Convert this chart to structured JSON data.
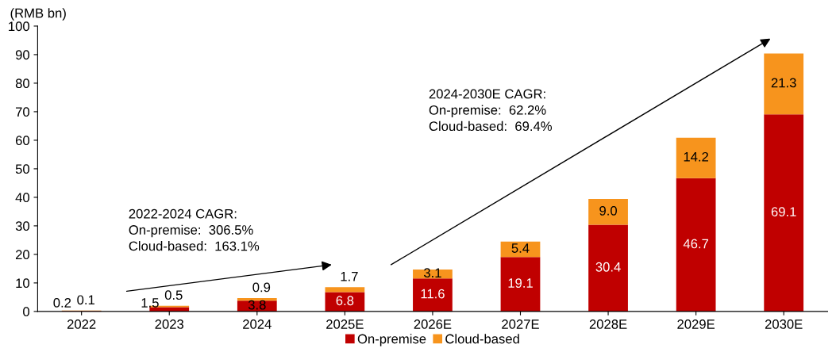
{
  "chart_data": {
    "type": "bar",
    "stacked": true,
    "ylabel": "(RMB bn)",
    "categories": [
      "2022",
      "2023",
      "2024",
      "2025E",
      "2026E",
      "2027E",
      "2028E",
      "2029E",
      "2030E"
    ],
    "series": [
      {
        "name": "On-premise",
        "color": "#c00000",
        "values": [
          0.2,
          1.5,
          3.8,
          6.8,
          11.6,
          19.1,
          30.4,
          46.7,
          69.1
        ],
        "value_labels": [
          "0.2",
          "1.5",
          "3.8",
          "6.8",
          "11.6",
          "19.1",
          "30.4",
          "46.7",
          "69.1"
        ]
      },
      {
        "name": "Cloud-based",
        "color": "#f7941d",
        "values": [
          0.1,
          0.5,
          0.9,
          1.7,
          3.1,
          5.4,
          9.0,
          14.2,
          21.3
        ],
        "value_labels": [
          "0.1",
          "0.5",
          "0.9",
          "1.7",
          "3.1",
          "5.4",
          "9.0",
          "14.2",
          "21.3"
        ]
      }
    ],
    "ylim": [
      0,
      100
    ],
    "yticks": [
      0,
      10,
      20,
      30,
      40,
      50,
      60,
      70,
      80,
      90,
      100
    ],
    "grid": false,
    "legend": "bottom",
    "annotations": [
      "2022-2024 CAGR:\nOn-premise:  306.5%\nCloud-based:  163.1%",
      "2024-2030E CAGR:\nOn-premise:  62.2%\nCloud-based:  69.4%"
    ]
  }
}
